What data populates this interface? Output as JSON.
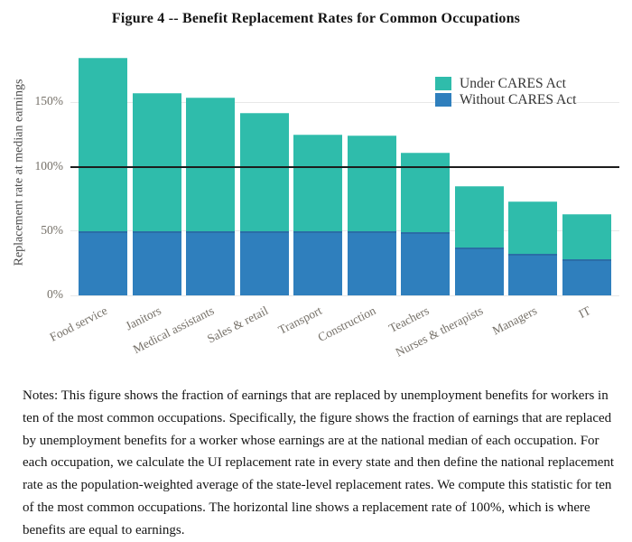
{
  "title": "Figure 4 -- Benefit Replacement Rates for Common Occupations",
  "chart_data": {
    "type": "bar",
    "subtype": "overlay-stacked",
    "categories": [
      "Food service",
      "Janitors",
      "Medical assistants",
      "Sales & retail",
      "Transport",
      "Construction",
      "Teachers",
      "Nurses & therapists",
      "Managers",
      "IT"
    ],
    "series": [
      {
        "name": "Under CARES Act",
        "color": "#2fbcab",
        "values": [
          185,
          157,
          154,
          142,
          125,
          124,
          111,
          85,
          73,
          63
        ]
      },
      {
        "name": "Without CARES Act",
        "color": "#2f7fbd",
        "values": [
          50,
          50,
          50,
          50,
          50,
          50,
          49,
          37,
          32,
          28
        ]
      }
    ],
    "xlabel": "",
    "ylabel": "Replacement rate at median earnings",
    "yticks": [
      {
        "value": 0,
        "label": "0%"
      },
      {
        "value": 50,
        "label": "50%"
      },
      {
        "value": 100,
        "label": "100%"
      },
      {
        "value": 150,
        "label": "150%"
      }
    ],
    "ylim": [
      0,
      191
    ],
    "reference_line": {
      "value": 100,
      "color": "#1c1c1c",
      "meaning": "replacement rate of 100%"
    },
    "grid": "horizontal-light",
    "legend_position": "top-right"
  },
  "notes": "Notes: This figure shows the fraction of earnings that are replaced by unemployment benefits for workers in ten of the most common occupations. Specifically, the figure shows the fraction of earnings that are replaced by unemployment benefits for a worker whose earnings are at the national median of each occupation. For each occupation, we calculate the UI replacement rate in every state and then define the national replacement rate as the population-weighted average of the state-level replacement rates. We compute this statistic for ten of the most common occupations. The horizontal line shows a replacement rate of 100%, which is where benefits are equal to earnings."
}
